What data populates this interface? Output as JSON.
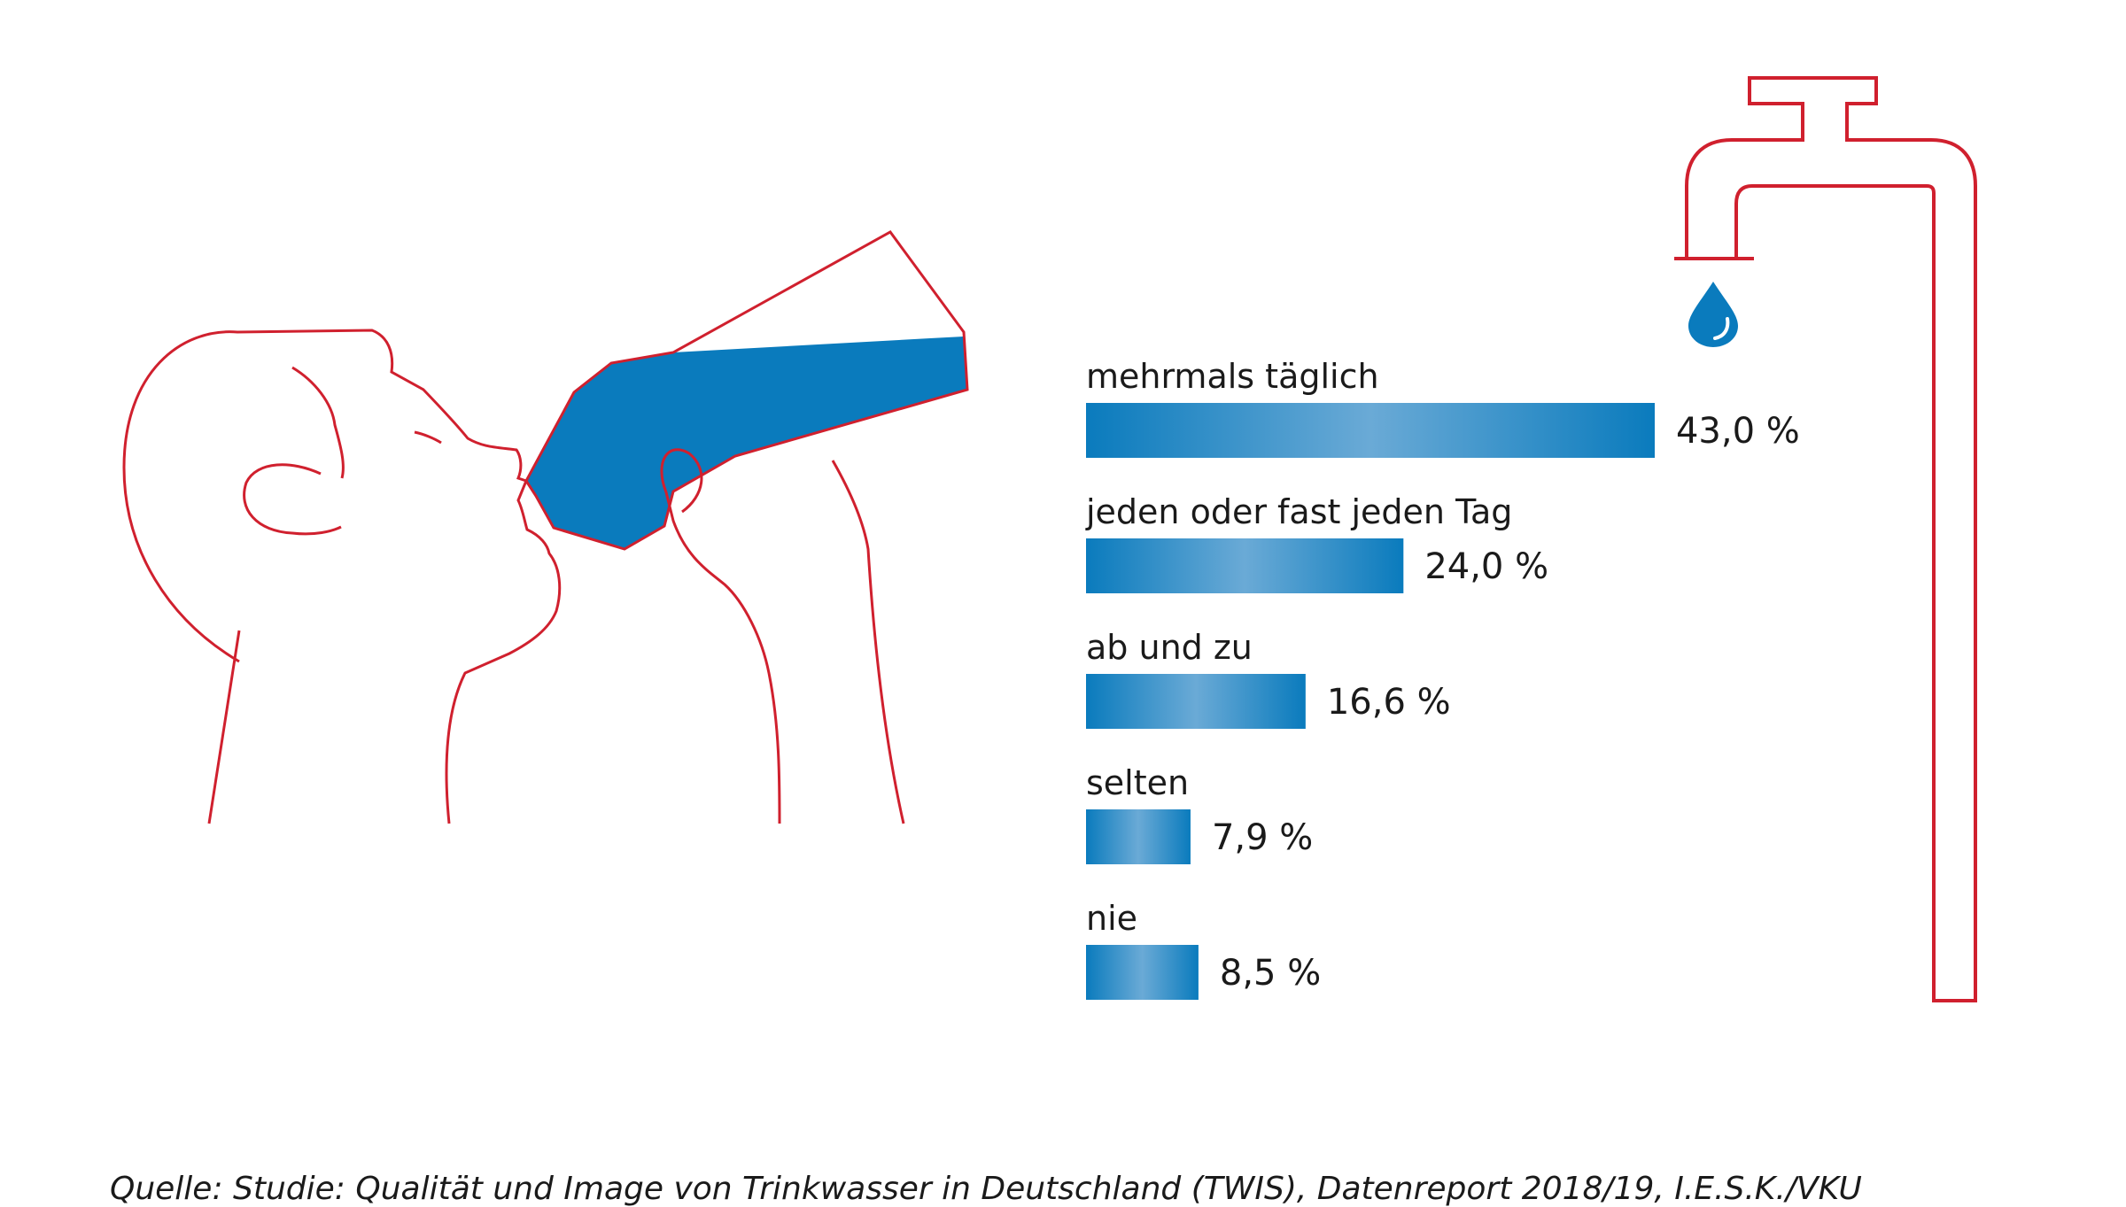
{
  "colors": {
    "bar": "#0a7bbd",
    "bar_highlight": "#6aaad6",
    "outline": "#d0202e",
    "water": "#0a7bbd"
  },
  "icons": [
    "drinking-person-icon",
    "bottle-icon",
    "water-tap-icon",
    "water-drop-icon"
  ],
  "chart_data": {
    "type": "bar",
    "orientation": "horizontal",
    "categories": [
      "mehrmals täglich",
      "jeden oder fast jeden Tag",
      "ab und zu",
      "selten",
      "nie"
    ],
    "values": [
      43.0,
      24.0,
      16.6,
      7.9,
      8.5
    ],
    "value_labels": [
      "43,0 %",
      "24,0 %",
      "16,6 %",
      "7,9 %",
      "8,5 %"
    ],
    "unit": "%",
    "grid": false,
    "legend": "none"
  },
  "source": "Quelle: Studie: Qualität und Image von Trinkwasser in Deutschland (TWIS), Datenreport 2018/19, I.E.S.K./VKU"
}
